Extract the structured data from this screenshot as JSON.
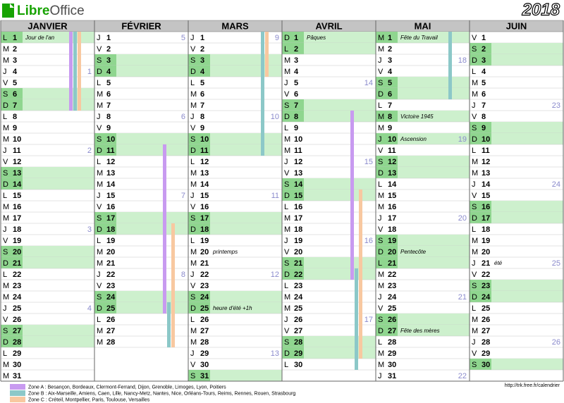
{
  "header": {
    "brand_a": "Libre",
    "brand_b": "Office",
    "year": "2018"
  },
  "months": [
    {
      "name": "JANVIER",
      "days": [
        {
          "l": "L",
          "n": 1,
          "note": "Jour de l'an"
        },
        {
          "l": "M",
          "n": 2
        },
        {
          "l": "M",
          "n": 3
        },
        {
          "l": "J",
          "n": 4,
          "w": 1
        },
        {
          "l": "V",
          "n": 5
        },
        {
          "l": "S",
          "n": 6
        },
        {
          "l": "D",
          "n": 7
        },
        {
          "l": "L",
          "n": 8
        },
        {
          "l": "M",
          "n": 9
        },
        {
          "l": "M",
          "n": 10
        },
        {
          "l": "J",
          "n": 11,
          "w": 2
        },
        {
          "l": "V",
          "n": 12
        },
        {
          "l": "S",
          "n": 13
        },
        {
          "l": "D",
          "n": 14
        },
        {
          "l": "L",
          "n": 15
        },
        {
          "l": "M",
          "n": 16
        },
        {
          "l": "M",
          "n": 17
        },
        {
          "l": "J",
          "n": 18,
          "w": 3
        },
        {
          "l": "V",
          "n": 19
        },
        {
          "l": "S",
          "n": 20
        },
        {
          "l": "D",
          "n": 21
        },
        {
          "l": "L",
          "n": 22
        },
        {
          "l": "M",
          "n": 23
        },
        {
          "l": "M",
          "n": 24
        },
        {
          "l": "J",
          "n": 25,
          "w": 4
        },
        {
          "l": "V",
          "n": 26
        },
        {
          "l": "S",
          "n": 27
        },
        {
          "l": "D",
          "n": 28
        },
        {
          "l": "L",
          "n": 29
        },
        {
          "l": "M",
          "n": 30
        },
        {
          "l": "M",
          "n": 31
        }
      ]
    },
    {
      "name": "FÉVRIER",
      "days": [
        {
          "l": "J",
          "n": 1,
          "w": 5
        },
        {
          "l": "V",
          "n": 2
        },
        {
          "l": "S",
          "n": 3
        },
        {
          "l": "D",
          "n": 4
        },
        {
          "l": "L",
          "n": 5
        },
        {
          "l": "M",
          "n": 6
        },
        {
          "l": "M",
          "n": 7
        },
        {
          "l": "J",
          "n": 8,
          "w": 6
        },
        {
          "l": "V",
          "n": 9
        },
        {
          "l": "S",
          "n": 10
        },
        {
          "l": "D",
          "n": 11
        },
        {
          "l": "L",
          "n": 12
        },
        {
          "l": "M",
          "n": 13
        },
        {
          "l": "M",
          "n": 14
        },
        {
          "l": "J",
          "n": 15,
          "w": 7
        },
        {
          "l": "V",
          "n": 16
        },
        {
          "l": "S",
          "n": 17
        },
        {
          "l": "D",
          "n": 18
        },
        {
          "l": "L",
          "n": 19
        },
        {
          "l": "M",
          "n": 20
        },
        {
          "l": "M",
          "n": 21
        },
        {
          "l": "J",
          "n": 22,
          "w": 8
        },
        {
          "l": "V",
          "n": 23
        },
        {
          "l": "S",
          "n": 24
        },
        {
          "l": "D",
          "n": 25
        },
        {
          "l": "L",
          "n": 26
        },
        {
          "l": "M",
          "n": 27
        },
        {
          "l": "M",
          "n": 28
        }
      ]
    },
    {
      "name": "MARS",
      "days": [
        {
          "l": "J",
          "n": 1,
          "w": 9
        },
        {
          "l": "V",
          "n": 2
        },
        {
          "l": "S",
          "n": 3
        },
        {
          "l": "D",
          "n": 4
        },
        {
          "l": "L",
          "n": 5
        },
        {
          "l": "M",
          "n": 6
        },
        {
          "l": "M",
          "n": 7
        },
        {
          "l": "J",
          "n": 8,
          "w": 10
        },
        {
          "l": "V",
          "n": 9
        },
        {
          "l": "S",
          "n": 10
        },
        {
          "l": "D",
          "n": 11
        },
        {
          "l": "L",
          "n": 12
        },
        {
          "l": "M",
          "n": 13
        },
        {
          "l": "M",
          "n": 14
        },
        {
          "l": "J",
          "n": 15,
          "w": 11
        },
        {
          "l": "V",
          "n": 16
        },
        {
          "l": "S",
          "n": 17
        },
        {
          "l": "D",
          "n": 18
        },
        {
          "l": "L",
          "n": 19
        },
        {
          "l": "M",
          "n": 20,
          "note": "printemps"
        },
        {
          "l": "M",
          "n": 21
        },
        {
          "l": "J",
          "n": 22,
          "w": 12
        },
        {
          "l": "V",
          "n": 23
        },
        {
          "l": "S",
          "n": 24
        },
        {
          "l": "D",
          "n": 25,
          "note": "heure d'été +1h"
        },
        {
          "l": "L",
          "n": 26
        },
        {
          "l": "M",
          "n": 27
        },
        {
          "l": "M",
          "n": 28
        },
        {
          "l": "J",
          "n": 29,
          "w": 13
        },
        {
          "l": "V",
          "n": 30
        },
        {
          "l": "S",
          "n": 31
        }
      ]
    },
    {
      "name": "AVRIL",
      "days": [
        {
          "l": "D",
          "n": 1,
          "note": "Pâques"
        },
        {
          "l": "L",
          "n": 2
        },
        {
          "l": "M",
          "n": 3
        },
        {
          "l": "M",
          "n": 4
        },
        {
          "l": "J",
          "n": 5,
          "w": 14
        },
        {
          "l": "V",
          "n": 6
        },
        {
          "l": "S",
          "n": 7
        },
        {
          "l": "D",
          "n": 8
        },
        {
          "l": "L",
          "n": 9
        },
        {
          "l": "M",
          "n": 10
        },
        {
          "l": "M",
          "n": 11
        },
        {
          "l": "J",
          "n": 12,
          "w": 15
        },
        {
          "l": "V",
          "n": 13
        },
        {
          "l": "S",
          "n": 14
        },
        {
          "l": "D",
          "n": 15
        },
        {
          "l": "L",
          "n": 16
        },
        {
          "l": "M",
          "n": 17
        },
        {
          "l": "M",
          "n": 18
        },
        {
          "l": "J",
          "n": 19,
          "w": 16
        },
        {
          "l": "V",
          "n": 20
        },
        {
          "l": "S",
          "n": 21
        },
        {
          "l": "D",
          "n": 22
        },
        {
          "l": "L",
          "n": 23
        },
        {
          "l": "M",
          "n": 24
        },
        {
          "l": "M",
          "n": 25
        },
        {
          "l": "J",
          "n": 26,
          "w": 17
        },
        {
          "l": "V",
          "n": 27
        },
        {
          "l": "S",
          "n": 28
        },
        {
          "l": "D",
          "n": 29
        },
        {
          "l": "L",
          "n": 30
        }
      ]
    },
    {
      "name": "MAI",
      "days": [
        {
          "l": "M",
          "n": 1,
          "note": "Fête du Travail"
        },
        {
          "l": "M",
          "n": 2
        },
        {
          "l": "J",
          "n": 3,
          "w": 18
        },
        {
          "l": "V",
          "n": 4
        },
        {
          "l": "S",
          "n": 5
        },
        {
          "l": "D",
          "n": 6
        },
        {
          "l": "L",
          "n": 7
        },
        {
          "l": "M",
          "n": 8,
          "note": "Victoire 1945"
        },
        {
          "l": "M",
          "n": 9
        },
        {
          "l": "J",
          "n": 10,
          "w": 19,
          "note": "Ascension"
        },
        {
          "l": "V",
          "n": 11
        },
        {
          "l": "S",
          "n": 12
        },
        {
          "l": "D",
          "n": 13
        },
        {
          "l": "L",
          "n": 14
        },
        {
          "l": "M",
          "n": 15
        },
        {
          "l": "M",
          "n": 16
        },
        {
          "l": "J",
          "n": 17,
          "w": 20
        },
        {
          "l": "V",
          "n": 18
        },
        {
          "l": "S",
          "n": 19
        },
        {
          "l": "D",
          "n": 20,
          "note": "Pentecôte"
        },
        {
          "l": "L",
          "n": 21
        },
        {
          "l": "M",
          "n": 22
        },
        {
          "l": "M",
          "n": 23
        },
        {
          "l": "J",
          "n": 24,
          "w": 21
        },
        {
          "l": "V",
          "n": 25
        },
        {
          "l": "S",
          "n": 26
        },
        {
          "l": "D",
          "n": 27,
          "note": "Fête des mères"
        },
        {
          "l": "L",
          "n": 28
        },
        {
          "l": "M",
          "n": 29
        },
        {
          "l": "M",
          "n": 30
        },
        {
          "l": "J",
          "n": 31,
          "w": 22
        }
      ]
    },
    {
      "name": "JUIN",
      "days": [
        {
          "l": "V",
          "n": 1
        },
        {
          "l": "S",
          "n": 2
        },
        {
          "l": "D",
          "n": 3
        },
        {
          "l": "L",
          "n": 4
        },
        {
          "l": "M",
          "n": 5
        },
        {
          "l": "M",
          "n": 6
        },
        {
          "l": "J",
          "n": 7,
          "w": 23
        },
        {
          "l": "V",
          "n": 8
        },
        {
          "l": "S",
          "n": 9
        },
        {
          "l": "D",
          "n": 10
        },
        {
          "l": "L",
          "n": 11
        },
        {
          "l": "M",
          "n": 12
        },
        {
          "l": "M",
          "n": 13
        },
        {
          "l": "J",
          "n": 14,
          "w": 24
        },
        {
          "l": "V",
          "n": 15
        },
        {
          "l": "S",
          "n": 16
        },
        {
          "l": "D",
          "n": 17
        },
        {
          "l": "L",
          "n": 18
        },
        {
          "l": "M",
          "n": 19
        },
        {
          "l": "M",
          "n": 20
        },
        {
          "l": "J",
          "n": 21,
          "w": 25,
          "note": "été"
        },
        {
          "l": "V",
          "n": 22
        },
        {
          "l": "S",
          "n": 23
        },
        {
          "l": "D",
          "n": 24
        },
        {
          "l": "L",
          "n": 25
        },
        {
          "l": "M",
          "n": 26
        },
        {
          "l": "M",
          "n": 27
        },
        {
          "l": "J",
          "n": 28,
          "w": 26
        },
        {
          "l": "V",
          "n": 29
        },
        {
          "l": "S",
          "n": 30
        }
      ]
    }
  ],
  "legend": [
    "Zone A : Besançon, Bordeaux, Clermont-Ferrand, Dijon, Grenoble, Limoges, Lyon, Poitiers",
    "Zone B : Aix-Marseille, Amiens, Caen, Lille, Nancy-Metz, Nantes, Nice, Orléans-Tours, Reims, Rennes, Rouen, Strasbourg",
    "Zone C : Créteil, Montpellier, Paris, Toulouse, Versailles"
  ],
  "footer": "http://trk.free.fr/calendrier"
}
